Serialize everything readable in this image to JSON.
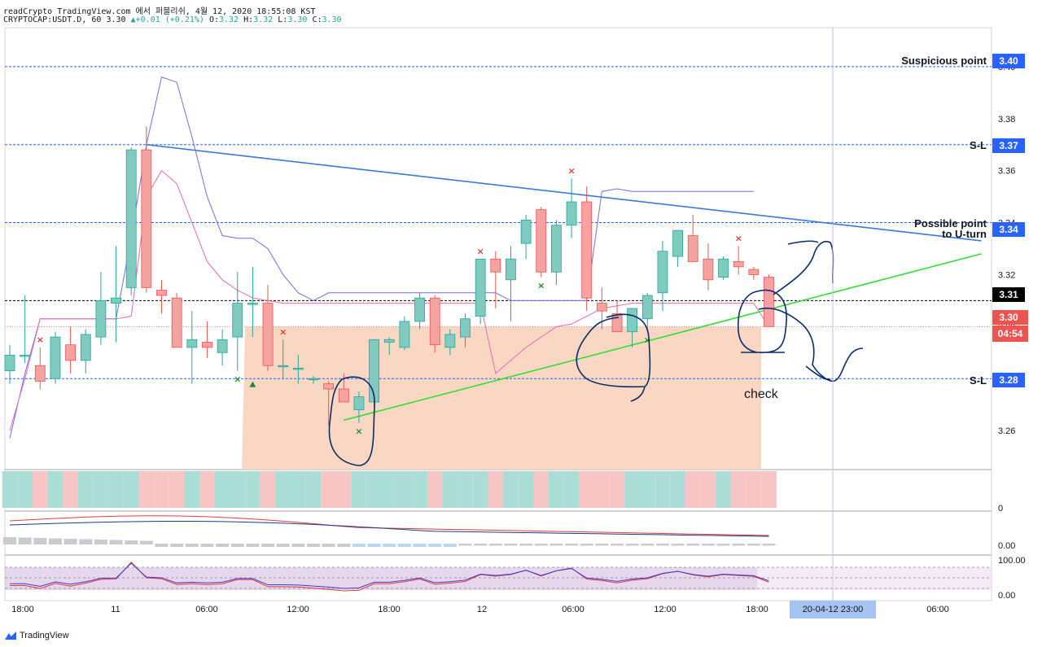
{
  "header": {
    "line1": "readCrypto TradingView.com 에서 퍼블리쉬, 4월 12, 2020 18:55:08 KST",
    "symbol": "CRYPTOCAP:USDT.D, 60",
    "last": "3.30",
    "change": "+0.01 (+0.21%)",
    "ohlc": {
      "o_label": "O:",
      "o": "3.32",
      "h_label": "H:",
      "h": "3.32",
      "l_label": "L:",
      "l": "3.30",
      "c_label": "C:",
      "c": "3.30"
    }
  },
  "colors": {
    "up": "#26a69a",
    "down": "#ef5350",
    "up_fill": "#7fcbbf",
    "down_fill": "#f5a3a0",
    "trend_blue": "#3c78d8",
    "trend_green": "#33dd33",
    "level_blue": "#2962ff",
    "ink": "#0b2d6b",
    "shade": "#f8d3bd",
    "ma": "#6f6fe6",
    "pink": "#e86ab5"
  },
  "icons": {
    "brand": "tradingview-logo-icon"
  },
  "annotations": {
    "suspicious": "Suspicious point",
    "sl_top": "S-L",
    "possible_1": "Possible point",
    "possible_2": "to U-turn",
    "sl_bottom": "S-L",
    "check": "check"
  },
  "price_tags": {
    "suspicious": "3.40",
    "sl_top": "3.37",
    "possible": "3.34",
    "black": "3.31",
    "last": "3.30",
    "countdown": "04:54",
    "sl_bottom": "3.28"
  },
  "footer": {
    "brand": "TradingView"
  },
  "chart_data": {
    "type": "candlestick",
    "symbol": "CRYPTOCAP:USDT.D",
    "interval": "60",
    "ylim": [
      3.245,
      3.415
    ],
    "y_ticks": [
      "3.26",
      "3.28",
      "3.30",
      "3.32",
      "3.34",
      "3.36",
      "3.38",
      "3.40"
    ],
    "x_ticks": [
      "18:00",
      "11",
      "06:00",
      "12:00",
      "18:00",
      "12",
      "06:00",
      "12:00",
      "18:00",
      "20-04-12   23:00",
      "06:00"
    ],
    "candles": [
      {
        "o": 3.283,
        "h": 3.293,
        "l": 3.278,
        "c": 3.289
      },
      {
        "o": 3.289,
        "h": 3.312,
        "l": 3.286,
        "c": 3.289
      },
      {
        "o": 3.285,
        "h": 3.292,
        "l": 3.276,
        "c": 3.279
      },
      {
        "o": 3.28,
        "h": 3.298,
        "l": 3.278,
        "c": 3.296
      },
      {
        "o": 3.293,
        "h": 3.3,
        "l": 3.282,
        "c": 3.287
      },
      {
        "o": 3.287,
        "h": 3.299,
        "l": 3.282,
        "c": 3.297
      },
      {
        "o": 3.296,
        "h": 3.321,
        "l": 3.293,
        "c": 3.31
      },
      {
        "o": 3.309,
        "h": 3.331,
        "l": 3.294,
        "c": 3.311
      },
      {
        "o": 3.315,
        "h": 3.369,
        "l": 3.312,
        "c": 3.368
      },
      {
        "o": 3.368,
        "h": 3.377,
        "l": 3.313,
        "c": 3.315
      },
      {
        "o": 3.314,
        "h": 3.318,
        "l": 3.305,
        "c": 3.312
      },
      {
        "o": 3.311,
        "h": 3.313,
        "l": 3.292,
        "c": 3.292
      },
      {
        "o": 3.292,
        "h": 3.306,
        "l": 3.278,
        "c": 3.295
      },
      {
        "o": 3.294,
        "h": 3.302,
        "l": 3.288,
        "c": 3.292
      },
      {
        "o": 3.29,
        "h": 3.299,
        "l": 3.285,
        "c": 3.295
      },
      {
        "o": 3.296,
        "h": 3.321,
        "l": 3.283,
        "c": 3.309
      },
      {
        "o": 3.309,
        "h": 3.323,
        "l": 3.296,
        "c": 3.309
      },
      {
        "o": 3.309,
        "h": 3.316,
        "l": 3.283,
        "c": 3.285
      },
      {
        "o": 3.285,
        "h": 3.295,
        "l": 3.28,
        "c": 3.285
      },
      {
        "o": 3.284,
        "h": 3.289,
        "l": 3.278,
        "c": 3.284
      },
      {
        "o": 3.28,
        "h": 3.281,
        "l": 3.278,
        "c": 3.28
      },
      {
        "o": 3.278,
        "h": 3.279,
        "l": 3.262,
        "c": 3.276
      },
      {
        "o": 3.276,
        "h": 3.282,
        "l": 3.272,
        "c": 3.271
      },
      {
        "o": 3.268,
        "h": 3.275,
        "l": 3.263,
        "c": 3.273
      },
      {
        "o": 3.271,
        "h": 3.294,
        "l": 3.269,
        "c": 3.295
      },
      {
        "o": 3.294,
        "h": 3.296,
        "l": 3.289,
        "c": 3.295
      },
      {
        "o": 3.292,
        "h": 3.304,
        "l": 3.291,
        "c": 3.302
      },
      {
        "o": 3.302,
        "h": 3.313,
        "l": 3.299,
        "c": 3.311
      },
      {
        "o": 3.311,
        "h": 3.312,
        "l": 3.29,
        "c": 3.293
      },
      {
        "o": 3.292,
        "h": 3.299,
        "l": 3.289,
        "c": 3.297
      },
      {
        "o": 3.296,
        "h": 3.305,
        "l": 3.292,
        "c": 3.303
      },
      {
        "o": 3.304,
        "h": 3.326,
        "l": 3.301,
        "c": 3.326
      },
      {
        "o": 3.326,
        "h": 3.329,
        "l": 3.307,
        "c": 3.321
      },
      {
        "o": 3.318,
        "h": 3.331,
        "l": 3.302,
        "c": 3.326
      },
      {
        "o": 3.332,
        "h": 3.343,
        "l": 3.326,
        "c": 3.341
      },
      {
        "o": 3.345,
        "h": 3.346,
        "l": 3.319,
        "c": 3.321
      },
      {
        "o": 3.321,
        "h": 3.341,
        "l": 3.316,
        "c": 3.339
      },
      {
        "o": 3.339,
        "h": 3.357,
        "l": 3.334,
        "c": 3.348
      },
      {
        "o": 3.348,
        "h": 3.354,
        "l": 3.306,
        "c": 3.311
      },
      {
        "o": 3.309,
        "h": 3.315,
        "l": 3.299,
        "c": 3.306
      },
      {
        "o": 3.305,
        "h": 3.31,
        "l": 3.298,
        "c": 3.298
      },
      {
        "o": 3.298,
        "h": 3.306,
        "l": 3.292,
        "c": 3.307
      },
      {
        "o": 3.303,
        "h": 3.313,
        "l": 3.298,
        "c": 3.312
      },
      {
        "o": 3.313,
        "h": 3.333,
        "l": 3.306,
        "c": 3.329
      },
      {
        "o": 3.327,
        "h": 3.337,
        "l": 3.323,
        "c": 3.337
      },
      {
        "o": 3.335,
        "h": 3.343,
        "l": 3.326,
        "c": 3.325
      },
      {
        "o": 3.326,
        "h": 3.332,
        "l": 3.314,
        "c": 3.318
      },
      {
        "o": 3.319,
        "h": 3.327,
        "l": 3.318,
        "c": 3.326
      },
      {
        "o": 3.325,
        "h": 3.331,
        "l": 3.32,
        "c": 3.323
      },
      {
        "o": 3.322,
        "h": 3.323,
        "l": 3.318,
        "c": 3.32
      },
      {
        "o": 3.319,
        "h": 3.32,
        "l": 3.3,
        "c": 3.3
      }
    ],
    "levels": [
      {
        "name": "Suspicious point",
        "value": 3.4
      },
      {
        "name": "S-L",
        "value": 3.37
      },
      {
        "name": "Possible point to U-turn",
        "value": 3.34
      },
      {
        "name": "S-L",
        "value": 3.28
      }
    ],
    "black_level": 3.31,
    "last_price": 3.3,
    "shaded_zone": {
      "top": 3.3,
      "bottom": 3.245
    },
    "trendlines": [
      {
        "name": "descending",
        "color": "#3c78d8",
        "from": {
          "bar": 9,
          "v": 3.37
        },
        "to": {
          "bar": 64,
          "v": 3.333
        }
      },
      {
        "name": "ascending",
        "color": "#33dd33",
        "from": {
          "bar": 22,
          "v": 3.264
        },
        "to": {
          "bar": 64,
          "v": 3.328
        }
      }
    ],
    "ma_line": [
      3.257,
      3.282,
      3.303,
      3.303,
      3.303,
      3.303,
      3.303,
      3.303,
      3.334,
      3.37,
      3.396,
      3.394,
      3.373,
      3.35,
      3.335,
      3.334,
      3.334,
      3.33,
      3.32,
      3.313,
      3.31,
      3.313,
      3.313,
      3.313,
      3.313,
      3.313,
      3.313,
      3.313,
      3.313,
      3.313,
      3.313,
      3.313,
      3.313,
      3.31,
      3.31,
      3.31,
      3.31,
      3.31,
      3.31,
      3.352,
      3.353,
      3.352,
      3.352,
      3.352,
      3.352,
      3.352,
      3.352,
      3.352,
      3.352,
      3.352
    ],
    "pink_line": [
      3.26,
      3.28,
      3.303,
      3.303,
      3.303,
      3.303,
      3.303,
      3.303,
      3.304,
      3.35,
      3.36,
      3.355,
      3.34,
      3.325,
      3.318,
      3.314,
      3.311,
      3.31,
      3.309,
      3.309,
      3.309,
      3.309,
      3.309,
      3.309,
      3.309,
      3.309,
      3.309,
      3.309,
      3.309,
      3.309,
      3.309,
      3.309,
      3.282,
      3.287,
      3.292,
      3.296,
      3.3,
      3.301,
      3.304,
      3.307,
      3.308,
      3.309,
      3.309,
      3.309,
      3.309,
      3.309,
      3.309,
      3.309,
      3.309,
      3.309,
      3.3
    ],
    "sell_marks": [
      2,
      18,
      31,
      37,
      48
    ],
    "buy_marks": [
      15,
      23,
      35,
      42
    ],
    "volume_ticks": [
      "0"
    ],
    "macd_ticks": [
      "0.00"
    ],
    "rsi_ticks": [
      "100.00",
      "0.00"
    ]
  }
}
